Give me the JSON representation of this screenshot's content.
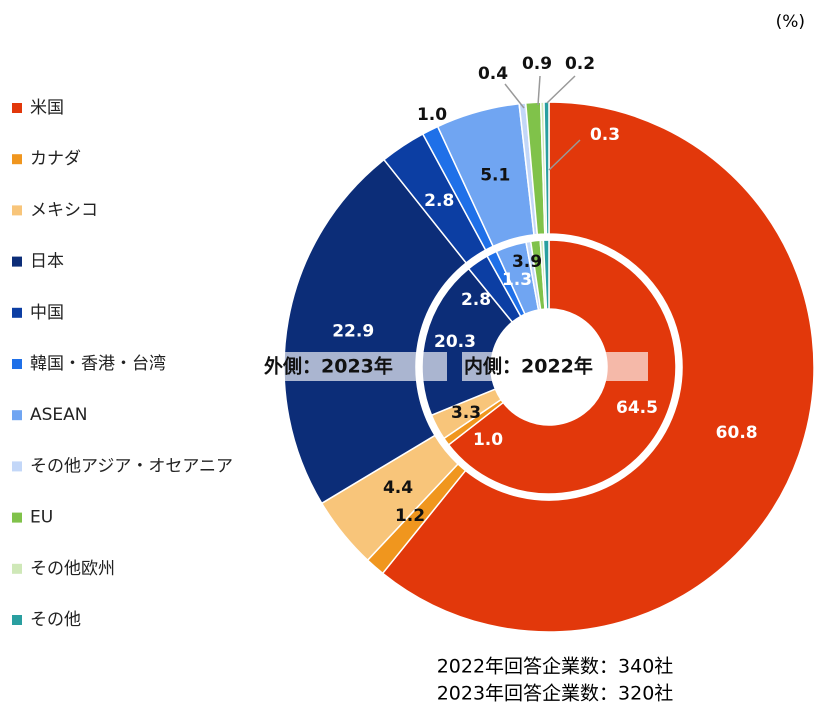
{
  "chart_data": {
    "type": "donut",
    "unit": "(%)",
    "categories": [
      "米国",
      "カナダ",
      "メキシコ",
      "日本",
      "中国",
      "韓国・香港・台湾",
      "ASEAN",
      "その他アジア・オセアニア",
      "EU",
      "その他欧州",
      "その他"
    ],
    "colors": [
      "#e2380b",
      "#f0961e",
      "#f8c57a",
      "#0c2d78",
      "#0c3ea3",
      "#1f70e8",
      "#70a5f2",
      "#c3d7f8",
      "#80c24a",
      "#cfe8b8",
      "#2a9fa0"
    ],
    "series": [
      {
        "name": "外側：2023年",
        "values": [
          60.8,
          1.2,
          4.4,
          22.9,
          2.8,
          1.0,
          5.1,
          0.4,
          0.9,
          0.2,
          0.3
        ],
        "value_labels": [
          "60.8",
          "1.2",
          "4.4",
          "22.9",
          "2.8",
          "1.0",
          "5.1",
          "0.4",
          "0.9",
          "0.2",
          "0.3"
        ]
      },
      {
        "name": "内側：2022年",
        "values": [
          64.5,
          1.0,
          3.3,
          20.3,
          2.8,
          1.3,
          3.9,
          0.6,
          1.2,
          0.4,
          0.7
        ],
        "value_labels": [
          "64.5",
          "1.0",
          "3.3",
          "20.3",
          "2.8",
          "1.3",
          "3.9",
          null,
          null,
          null,
          null
        ]
      }
    ],
    "notes": [
      "2022年回答企業数：340社",
      "2023年回答企業数：320社"
    ]
  }
}
